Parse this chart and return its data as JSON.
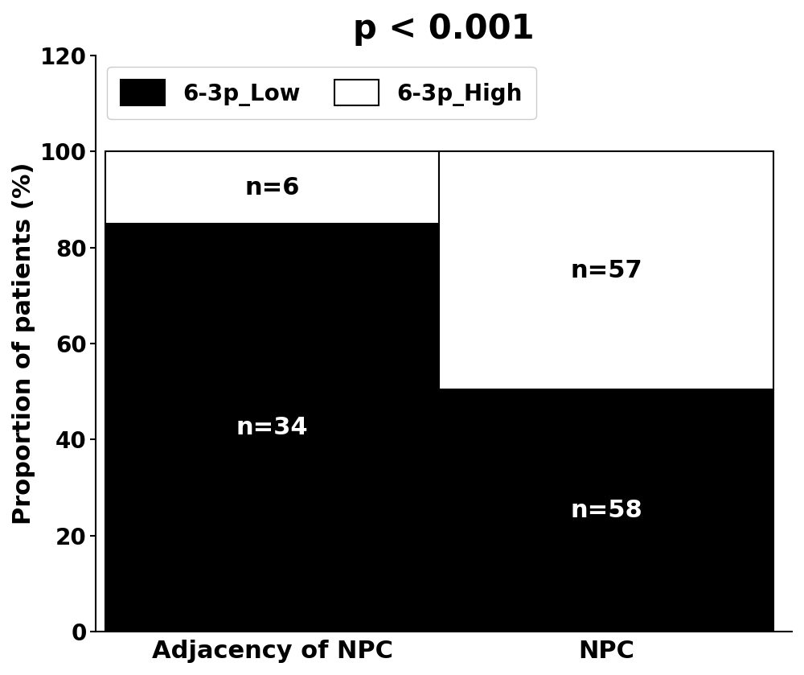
{
  "categories": [
    "Adjacency of NPC",
    "NPC"
  ],
  "low_n": [
    34,
    58
  ],
  "high_n": [
    6,
    57
  ],
  "low_pct": [
    85.0,
    50.43
  ],
  "high_pct": [
    15.0,
    49.57
  ],
  "low_color": "#000000",
  "high_color": "#ffffff",
  "low_label": "6-3p_Low",
  "high_label": "6-3p_High",
  "title": "p < 0.001",
  "ylabel": "Proportion of patients (%)",
  "xlabel": "",
  "ylim": [
    0,
    120
  ],
  "yticks": [
    0,
    20,
    40,
    60,
    80,
    100,
    120
  ],
  "bar_width": 0.72,
  "title_fontsize": 30,
  "axis_label_fontsize": 22,
  "tick_fontsize": 20,
  "legend_fontsize": 20,
  "annotation_fontsize": 22,
  "background_color": "#ffffff",
  "edge_color": "#000000",
  "bar_positions": [
    0.28,
    1.0
  ],
  "xlim": [
    -0.1,
    1.4
  ]
}
